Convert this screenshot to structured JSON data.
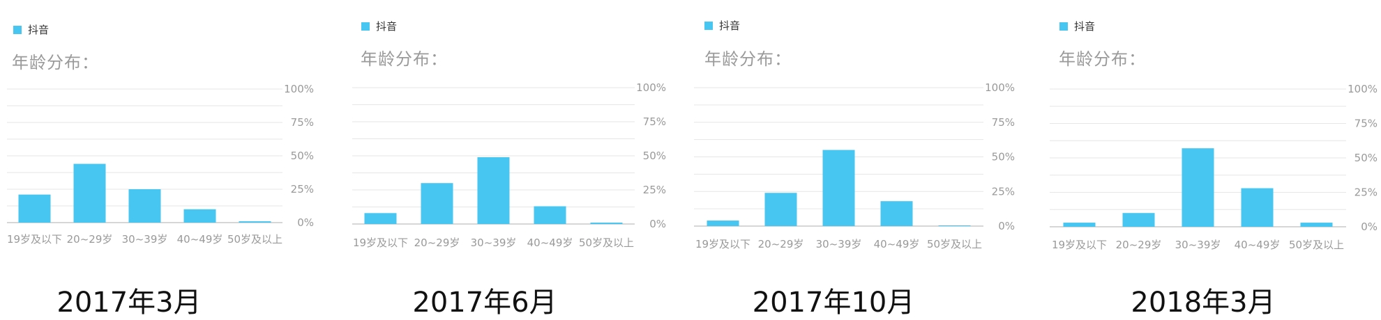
{
  "colors": {
    "bar": "#48c6f2",
    "grid": "#e6e6e6",
    "axis": "#c8c8c8"
  },
  "chart_data": [
    {
      "type": "bar",
      "legend": "抖音",
      "subtitle": "年龄分布：",
      "caption": "2017年3月",
      "categories": [
        "19岁及以下",
        "20~29岁",
        "30~39岁",
        "40~49岁",
        "50岁及以上"
      ],
      "values": [
        21,
        44,
        25,
        10,
        1
      ],
      "ylim": [
        0,
        100
      ],
      "yticks": [
        "0%",
        "25%",
        "50%",
        "75%",
        "100%"
      ]
    },
    {
      "type": "bar",
      "legend": "抖音",
      "subtitle": "年龄分布：",
      "caption": "2017年6月",
      "categories": [
        "19岁及以下",
        "20~29岁",
        "30~39岁",
        "40~49岁",
        "50岁及以上"
      ],
      "values": [
        8,
        30,
        49,
        13,
        1
      ],
      "ylim": [
        0,
        100
      ],
      "yticks": [
        "0%",
        "25%",
        "50%",
        "75%",
        "100%"
      ]
    },
    {
      "type": "bar",
      "legend": "抖音",
      "subtitle": "年龄分布：",
      "caption": "2017年10月",
      "categories": [
        "19岁及以下",
        "20~29岁",
        "30~39岁",
        "40~49岁",
        "50岁及以上"
      ],
      "values": [
        4,
        24,
        55,
        18,
        0.5
      ],
      "ylim": [
        0,
        100
      ],
      "yticks": [
        "0%",
        "25%",
        "50%",
        "75%",
        "100%"
      ]
    },
    {
      "type": "bar",
      "legend": "抖音",
      "subtitle": "年龄分布：",
      "caption": "2018年3月",
      "categories": [
        "19岁及以下",
        "20~29岁",
        "30~39岁",
        "40~49岁",
        "50岁及以上"
      ],
      "values": [
        3,
        10,
        57,
        28,
        3
      ],
      "ylim": [
        0,
        100
      ],
      "yticks": [
        "0%",
        "25%",
        "50%",
        "75%",
        "100%"
      ]
    }
  ]
}
